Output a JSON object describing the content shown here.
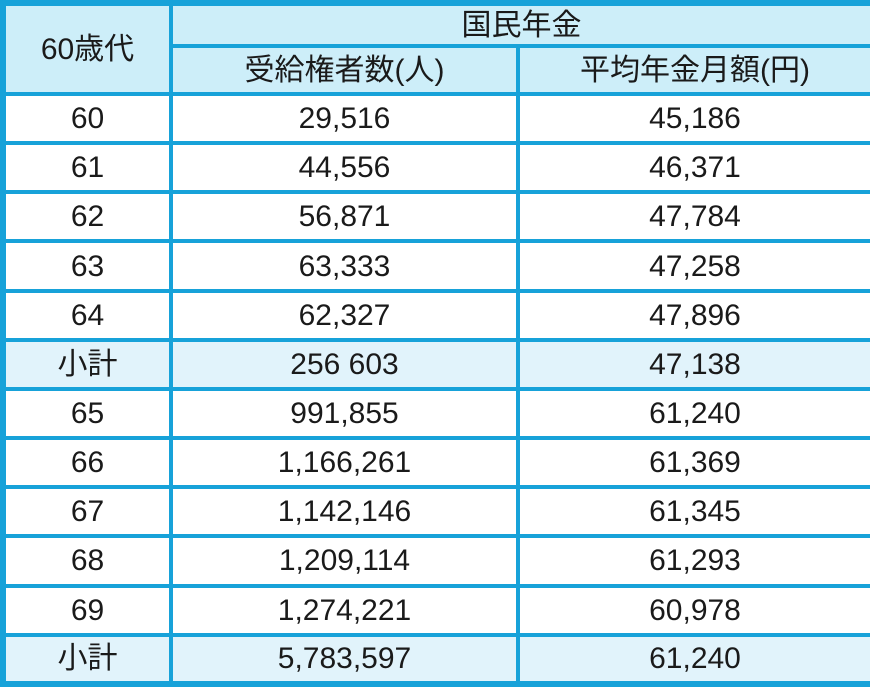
{
  "chart_data": {
    "type": "table",
    "title": "国民年金",
    "age_group_label": "60歳代",
    "columns": [
      "60歳代",
      "受給権者数(人)",
      "平均年金月額(円)"
    ],
    "rows": [
      [
        "60",
        "29,516",
        "45,186"
      ],
      [
        "61",
        "44,556",
        "46,371"
      ],
      [
        "62",
        "56,871",
        "47,784"
      ],
      [
        "63",
        "63,333",
        "47,258"
      ],
      [
        "64",
        "62,327",
        "47,896"
      ],
      [
        "小計",
        "256 603",
        "47,138"
      ],
      [
        "65",
        "991,855",
        "61,240"
      ],
      [
        "66",
        "1,166,261",
        "61,369"
      ],
      [
        "67",
        "1,142,146",
        "61,345"
      ],
      [
        "68",
        "1,209,114",
        "61,293"
      ],
      [
        "69",
        "1,274,221",
        "60,978"
      ],
      [
        "小計",
        "5,783,597",
        "61,240"
      ]
    ],
    "row_types": [
      "data",
      "data",
      "data",
      "data",
      "data",
      "subtotal",
      "data",
      "data",
      "data",
      "data",
      "data",
      "subtotal"
    ],
    "layout": "grid-table, all cells center-aligned, subtotal and header rows shaded"
  },
  "colors": {
    "border": "#17a2d9",
    "header_background": "#cdeef9",
    "subtotal_background": "#e1f3fb",
    "data_row_background": "#ffffff",
    "text": "#1a1a1a"
  }
}
